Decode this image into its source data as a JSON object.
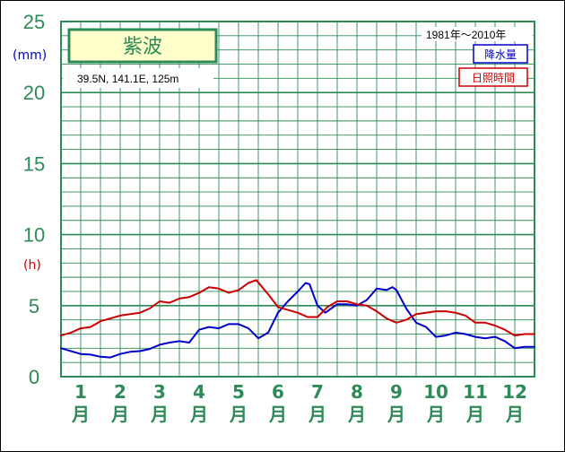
{
  "chart_data": {
    "type": "line",
    "title": "紫波",
    "location": "39.5N,  141.1E,  125m",
    "period": "1981年〜2010年",
    "y_unit_left": "(mm)",
    "y_unit_right": "(h)",
    "ylim": [
      0,
      25
    ],
    "yticks": [
      "0",
      "5",
      "10",
      "15",
      "20",
      "25"
    ],
    "xlim": [
      0.5,
      12.5
    ],
    "months": [
      "1",
      "2",
      "3",
      "4",
      "5",
      "6",
      "7",
      "8",
      "9",
      "10",
      "11",
      "12"
    ],
    "month_suffix": "月",
    "grid": true,
    "legend_position": "top-right",
    "series": [
      {
        "name": "降水量",
        "color": "#0000cc",
        "points": [
          [
            0.5,
            2.0
          ],
          [
            0.75,
            1.8
          ],
          [
            1.0,
            1.6
          ],
          [
            1.25,
            1.55
          ],
          [
            1.5,
            1.4
          ],
          [
            1.75,
            1.35
          ],
          [
            2.0,
            1.6
          ],
          [
            2.25,
            1.75
          ],
          [
            2.5,
            1.8
          ],
          [
            2.75,
            1.95
          ],
          [
            3.0,
            2.25
          ],
          [
            3.25,
            2.4
          ],
          [
            3.5,
            2.5
          ],
          [
            3.75,
            2.4
          ],
          [
            4.0,
            3.3
          ],
          [
            4.25,
            3.5
          ],
          [
            4.5,
            3.4
          ],
          [
            4.75,
            3.7
          ],
          [
            5.0,
            3.7
          ],
          [
            5.25,
            3.4
          ],
          [
            5.5,
            2.7
          ],
          [
            5.75,
            3.1
          ],
          [
            6.0,
            4.5
          ],
          [
            6.25,
            5.3
          ],
          [
            6.5,
            6.0
          ],
          [
            6.7,
            6.6
          ],
          [
            6.8,
            6.5
          ],
          [
            7.0,
            5.0
          ],
          [
            7.2,
            4.5
          ],
          [
            7.5,
            5.1
          ],
          [
            7.75,
            5.1
          ],
          [
            8.0,
            5.0
          ],
          [
            8.25,
            5.4
          ],
          [
            8.5,
            6.2
          ],
          [
            8.75,
            6.1
          ],
          [
            8.9,
            6.3
          ],
          [
            9.0,
            6.1
          ],
          [
            9.25,
            4.8
          ],
          [
            9.5,
            3.8
          ],
          [
            9.75,
            3.5
          ],
          [
            10.0,
            2.8
          ],
          [
            10.25,
            2.9
          ],
          [
            10.5,
            3.1
          ],
          [
            10.75,
            3.0
          ],
          [
            11.0,
            2.8
          ],
          [
            11.25,
            2.7
          ],
          [
            11.5,
            2.8
          ],
          [
            11.75,
            2.5
          ],
          [
            12.0,
            2.0
          ],
          [
            12.25,
            2.1
          ],
          [
            12.5,
            2.1
          ]
        ]
      },
      {
        "name": "日照時間",
        "color": "#cc0000",
        "points": [
          [
            0.5,
            2.9
          ],
          [
            0.75,
            3.1
          ],
          [
            1.0,
            3.4
          ],
          [
            1.25,
            3.5
          ],
          [
            1.5,
            3.9
          ],
          [
            1.75,
            4.1
          ],
          [
            2.0,
            4.3
          ],
          [
            2.25,
            4.4
          ],
          [
            2.5,
            4.5
          ],
          [
            2.75,
            4.8
          ],
          [
            3.0,
            5.3
          ],
          [
            3.25,
            5.2
          ],
          [
            3.5,
            5.5
          ],
          [
            3.75,
            5.6
          ],
          [
            4.0,
            5.9
          ],
          [
            4.25,
            6.3
          ],
          [
            4.5,
            6.2
          ],
          [
            4.75,
            5.9
          ],
          [
            5.0,
            6.1
          ],
          [
            5.25,
            6.6
          ],
          [
            5.45,
            6.8
          ],
          [
            5.75,
            5.8
          ],
          [
            6.0,
            4.9
          ],
          [
            6.25,
            4.7
          ],
          [
            6.5,
            4.5
          ],
          [
            6.75,
            4.2
          ],
          [
            7.0,
            4.2
          ],
          [
            7.25,
            4.9
          ],
          [
            7.5,
            5.3
          ],
          [
            7.75,
            5.3
          ],
          [
            8.0,
            5.1
          ],
          [
            8.25,
            5.0
          ],
          [
            8.5,
            4.6
          ],
          [
            8.75,
            4.1
          ],
          [
            9.0,
            3.8
          ],
          [
            9.25,
            4.0
          ],
          [
            9.5,
            4.4
          ],
          [
            9.75,
            4.5
          ],
          [
            10.0,
            4.6
          ],
          [
            10.25,
            4.6
          ],
          [
            10.5,
            4.5
          ],
          [
            10.75,
            4.3
          ],
          [
            11.0,
            3.8
          ],
          [
            11.25,
            3.8
          ],
          [
            11.5,
            3.6
          ],
          [
            11.75,
            3.3
          ],
          [
            12.0,
            2.9
          ],
          [
            12.25,
            3.0
          ],
          [
            12.5,
            3.0
          ]
        ]
      }
    ]
  }
}
